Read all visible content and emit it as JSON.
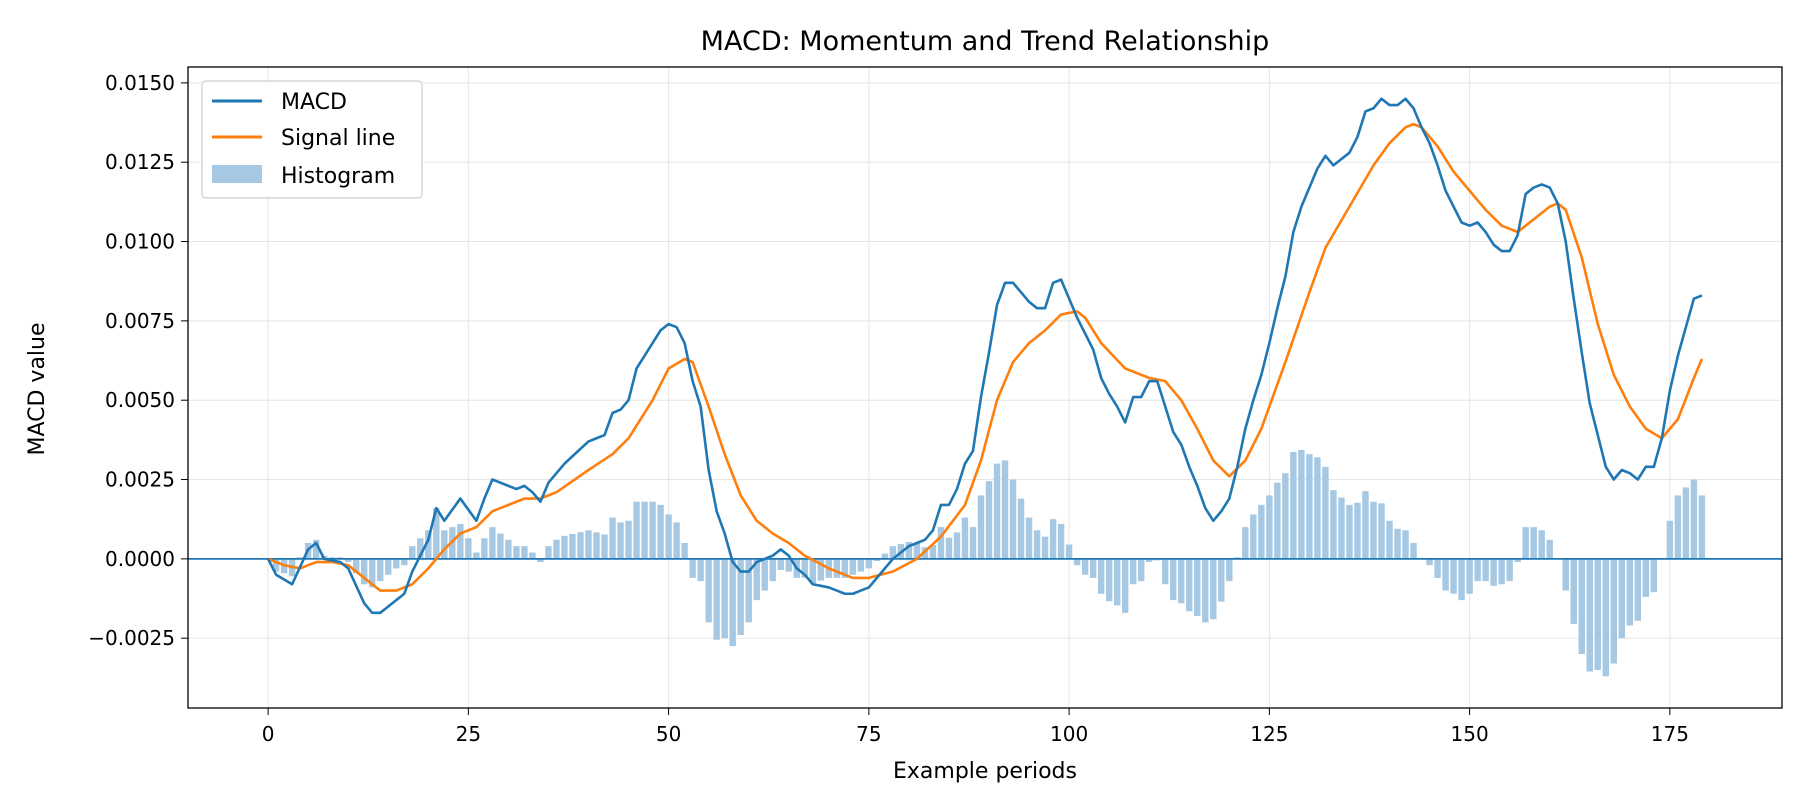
{
  "chart_data": {
    "type": "line",
    "title": "MACD: Momentum and Trend Relationship",
    "xlabel": "Example periods",
    "ylabel": "MACD value",
    "xlim": [
      -10,
      189
    ],
    "ylim": [
      -0.0047,
      0.0155
    ],
    "x_ticks": [
      0,
      25,
      50,
      75,
      100,
      125,
      150,
      175
    ],
    "x_tick_labels": [
      "0",
      "25",
      "50",
      "75",
      "100",
      "125",
      "150",
      "175"
    ],
    "y_ticks": [
      -0.0025,
      0.0,
      0.0025,
      0.005,
      0.0075,
      0.01,
      0.0125,
      0.015
    ],
    "y_tick_labels": [
      "−0.0025",
      "0.0000",
      "0.0025",
      "0.0050",
      "0.0075",
      "0.0100",
      "0.0125",
      "0.0150"
    ],
    "grid": true,
    "legend_placement": "upper-left",
    "zero_line": 0,
    "colors": {
      "macd": "#1f77b4",
      "signal": "#ff7f0e",
      "histogram": "#a6c8e2"
    },
    "macd_keypoints": [
      [
        0,
        0
      ],
      [
        1,
        -0.0005
      ],
      [
        3,
        -0.0008
      ],
      [
        5,
        0.0003
      ],
      [
        6,
        0.0005
      ],
      [
        7,
        0
      ],
      [
        9,
        -0.0001
      ],
      [
        10,
        -0.0003
      ],
      [
        12,
        -0.0014
      ],
      [
        13,
        -0.0017
      ],
      [
        14,
        -0.0017
      ],
      [
        15,
        -0.0015
      ],
      [
        17,
        -0.0011
      ],
      [
        18,
        -0.0004
      ],
      [
        20,
        0.0006
      ],
      [
        21,
        0.0016
      ],
      [
        22,
        0.0012
      ],
      [
        24,
        0.0019
      ],
      [
        26,
        0.0012
      ],
      [
        27,
        0.0019
      ],
      [
        28,
        0.0025
      ],
      [
        30,
        0.0023
      ],
      [
        31,
        0.0022
      ],
      [
        32,
        0.0023
      ],
      [
        33,
        0.0021
      ],
      [
        34,
        0.0018
      ],
      [
        35,
        0.0024
      ],
      [
        37,
        0.003
      ],
      [
        40,
        0.0037
      ],
      [
        42,
        0.0039
      ],
      [
        43,
        0.0046
      ],
      [
        44,
        0.0047
      ],
      [
        45,
        0.005
      ],
      [
        46,
        0.006
      ],
      [
        48,
        0.0068
      ],
      [
        49,
        0.0072
      ],
      [
        50,
        0.0074
      ],
      [
        51,
        0.0073
      ],
      [
        52,
        0.0068
      ],
      [
        53,
        0.0056
      ],
      [
        54,
        0.0048
      ],
      [
        55,
        0.0028
      ],
      [
        56,
        0.0015
      ],
      [
        57,
        0.0008
      ],
      [
        58,
        -0.0001
      ],
      [
        59,
        -0.0004
      ],
      [
        60,
        -0.0004
      ],
      [
        61,
        -0.0001
      ],
      [
        63,
        0.0001
      ],
      [
        64,
        0.0003
      ],
      [
        65,
        0.0001
      ],
      [
        66,
        -0.0003
      ],
      [
        67,
        -0.0005
      ],
      [
        68,
        -0.0008
      ],
      [
        70,
        -0.0009
      ],
      [
        71,
        -0.001
      ],
      [
        72,
        -0.0011
      ],
      [
        73,
        -0.0011
      ],
      [
        74,
        -0.001
      ],
      [
        75,
        -0.0009
      ],
      [
        76,
        -0.0006
      ],
      [
        77,
        -0.0003
      ],
      [
        78,
        0
      ],
      [
        79,
        0.0002
      ],
      [
        80,
        0.0004
      ],
      [
        82,
        0.0006
      ],
      [
        83,
        0.0009
      ],
      [
        84,
        0.0017
      ],
      [
        85,
        0.0017
      ],
      [
        86,
        0.0022
      ],
      [
        87,
        0.003
      ],
      [
        88,
        0.0034
      ],
      [
        89,
        0.0051
      ],
      [
        90,
        0.0065
      ],
      [
        91,
        0.008
      ],
      [
        92,
        0.0087
      ],
      [
        93,
        0.0087
      ],
      [
        94,
        0.0084
      ],
      [
        95,
        0.0081
      ],
      [
        96,
        0.0079
      ],
      [
        97,
        0.0079
      ],
      [
        98,
        0.0087
      ],
      [
        99,
        0.0088
      ],
      [
        100,
        0.0082
      ],
      [
        101,
        0.0076
      ],
      [
        102,
        0.0071
      ],
      [
        103,
        0.0066
      ],
      [
        104,
        0.0057
      ],
      [
        105,
        0.0052
      ],
      [
        106,
        0.0048
      ],
      [
        107,
        0.0043
      ],
      [
        108,
        0.0051
      ],
      [
        109,
        0.0051
      ],
      [
        110,
        0.0056
      ],
      [
        111,
        0.0056
      ],
      [
        112,
        0.0048
      ],
      [
        113,
        0.004
      ],
      [
        114,
        0.0036
      ],
      [
        115,
        0.0029
      ],
      [
        116,
        0.0023
      ],
      [
        117,
        0.0016
      ],
      [
        118,
        0.0012
      ],
      [
        119,
        0.0015
      ],
      [
        120,
        0.0019
      ],
      [
        121,
        0.0029
      ],
      [
        122,
        0.0041
      ],
      [
        123,
        0.005
      ],
      [
        124,
        0.0058
      ],
      [
        125,
        0.0068
      ],
      [
        126,
        0.0079
      ],
      [
        127,
        0.0089
      ],
      [
        128,
        0.0103
      ],
      [
        129,
        0.0111
      ],
      [
        130,
        0.0117
      ],
      [
        131,
        0.0123
      ],
      [
        132,
        0.0127
      ],
      [
        133,
        0.0124
      ],
      [
        134,
        0.0126
      ],
      [
        135,
        0.0128
      ],
      [
        136,
        0.0133
      ],
      [
        137,
        0.0141
      ],
      [
        138,
        0.0142
      ],
      [
        139,
        0.0145
      ],
      [
        140,
        0.0143
      ],
      [
        141,
        0.0143
      ],
      [
        142,
        0.0145
      ],
      [
        143,
        0.0142
      ],
      [
        144,
        0.0136
      ],
      [
        145,
        0.0131
      ],
      [
        146,
        0.0124
      ],
      [
        147,
        0.0116
      ],
      [
        148,
        0.0111
      ],
      [
        149,
        0.0106
      ],
      [
        150,
        0.0105
      ],
      [
        151,
        0.0106
      ],
      [
        152,
        0.0103
      ],
      [
        153,
        0.0099
      ],
      [
        154,
        0.0097
      ],
      [
        155,
        0.0097
      ],
      [
        156,
        0.0102
      ],
      [
        157,
        0.0115
      ],
      [
        158,
        0.0117
      ],
      [
        159,
        0.0118
      ],
      [
        160,
        0.0117
      ],
      [
        161,
        0.0112
      ],
      [
        162,
        0.01
      ],
      [
        163,
        0.0082
      ],
      [
        164,
        0.0065
      ],
      [
        165,
        0.0049
      ],
      [
        166,
        0.0039
      ],
      [
        167,
        0.0029
      ],
      [
        168,
        0.0025
      ],
      [
        169,
        0.0028
      ],
      [
        170,
        0.0027
      ],
      [
        171,
        0.0025
      ],
      [
        172,
        0.0029
      ],
      [
        173,
        0.0029
      ],
      [
        174,
        0.0038
      ],
      [
        175,
        0.0053
      ],
      [
        176,
        0.0064
      ],
      [
        177,
        0.0073
      ],
      [
        178,
        0.0082
      ],
      [
        179,
        0.0083
      ]
    ],
    "signal_keypoints": [
      [
        0,
        0
      ],
      [
        2,
        -0.0002
      ],
      [
        4,
        -0.0003
      ],
      [
        6,
        -0.0001
      ],
      [
        8,
        -0.0001
      ],
      [
        10,
        -0.0002
      ],
      [
        12,
        -0.0006
      ],
      [
        14,
        -0.001
      ],
      [
        16,
        -0.001
      ],
      [
        18,
        -0.0008
      ],
      [
        20,
        -0.0003
      ],
      [
        22,
        0.0003
      ],
      [
        24,
        0.0008
      ],
      [
        26,
        0.001
      ],
      [
        28,
        0.0015
      ],
      [
        30,
        0.0017
      ],
      [
        32,
        0.0019
      ],
      [
        34,
        0.0019
      ],
      [
        36,
        0.0021
      ],
      [
        40,
        0.0028
      ],
      [
        43,
        0.0033
      ],
      [
        45,
        0.0038
      ],
      [
        48,
        0.005
      ],
      [
        50,
        0.006
      ],
      [
        52,
        0.0063
      ],
      [
        53,
        0.0062
      ],
      [
        55,
        0.0048
      ],
      [
        57,
        0.0033
      ],
      [
        59,
        0.002
      ],
      [
        61,
        0.0012
      ],
      [
        63,
        0.0008
      ],
      [
        65,
        0.0005
      ],
      [
        67,
        0.0001
      ],
      [
        70,
        -0.0003
      ],
      [
        73,
        -0.0006
      ],
      [
        75,
        -0.0006
      ],
      [
        78,
        -0.0004
      ],
      [
        81,
        0
      ],
      [
        84,
        0.0007
      ],
      [
        87,
        0.0017
      ],
      [
        89,
        0.0031
      ],
      [
        91,
        0.005
      ],
      [
        93,
        0.0062
      ],
      [
        95,
        0.0068
      ],
      [
        97,
        0.0072
      ],
      [
        99,
        0.0077
      ],
      [
        101,
        0.0078
      ],
      [
        102,
        0.0076
      ],
      [
        104,
        0.0068
      ],
      [
        107,
        0.006
      ],
      [
        110,
        0.0057
      ],
      [
        112,
        0.0056
      ],
      [
        114,
        0.005
      ],
      [
        116,
        0.0041
      ],
      [
        118,
        0.0031
      ],
      [
        120,
        0.0026
      ],
      [
        122,
        0.0031
      ],
      [
        124,
        0.0041
      ],
      [
        127,
        0.0062
      ],
      [
        130,
        0.0084
      ],
      [
        132,
        0.0098
      ],
      [
        135,
        0.0111
      ],
      [
        138,
        0.0124
      ],
      [
        140,
        0.0131
      ],
      [
        142,
        0.0136
      ],
      [
        143,
        0.0137
      ],
      [
        144,
        0.0136
      ],
      [
        146,
        0.013
      ],
      [
        148,
        0.0122
      ],
      [
        150,
        0.0116
      ],
      [
        152,
        0.011
      ],
      [
        154,
        0.0105
      ],
      [
        156,
        0.0103
      ],
      [
        158,
        0.0107
      ],
      [
        160,
        0.0111
      ],
      [
        161,
        0.0112
      ],
      [
        162,
        0.011
      ],
      [
        164,
        0.0095
      ],
      [
        166,
        0.0074
      ],
      [
        168,
        0.0058
      ],
      [
        170,
        0.0048
      ],
      [
        172,
        0.0041
      ],
      [
        174,
        0.0038
      ],
      [
        176,
        0.0044
      ],
      [
        178,
        0.0057
      ],
      [
        179,
        0.0063
      ]
    ],
    "series": [
      {
        "name": "MACD",
        "kind": "line",
        "color": "#1f77b4"
      },
      {
        "name": "Signal line",
        "kind": "line",
        "color": "#ff7f0e"
      },
      {
        "name": "Histogram",
        "kind": "bar",
        "color": "#a6c8e2",
        "definition": "MACD - Signal line"
      }
    ]
  }
}
